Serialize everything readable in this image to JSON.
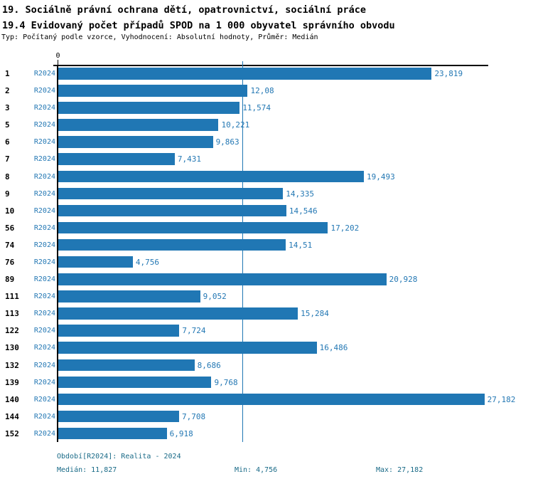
{
  "header": {
    "title_line1": "19. Sociálně právní ochrana dětí, opatrovnictví, sociální práce",
    "title_line2": "19.4 Evidovaný počet případů SPOD na 1 000 obyvatel správního obvodu",
    "subtitle": "Typ: Počítaný podle vzorce, Vyhodnocení: Absolutní hodnoty, Průměr: Medián"
  },
  "colors": {
    "bar": "#2077B4",
    "series_label": "#2478B4",
    "value_label": "#2478B4",
    "median_line": "#2077B4",
    "footer_text": "#196A87",
    "axis": "#000000"
  },
  "chart_data": {
    "type": "bar",
    "orientation": "horizontal",
    "title": "19.4 Evidovaný počet případů SPOD na 1 000 obyvatel správního obvodu",
    "xlabel": "",
    "ylabel": "",
    "xlim": [
      0,
      27.4
    ],
    "axis_zero_tick_label": "0",
    "grid": false,
    "legend_position": "none",
    "categories": [
      "1",
      "2",
      "3",
      "5",
      "6",
      "7",
      "8",
      "9",
      "10",
      "56",
      "74",
      "76",
      "89",
      "111",
      "113",
      "122",
      "130",
      "132",
      "139",
      "140",
      "144",
      "152"
    ],
    "series": [
      {
        "name": "R2024",
        "values": [
          23.819,
          12.08,
          11.574,
          10.221,
          9.863,
          7.431,
          19.493,
          14.335,
          14.546,
          17.202,
          14.51,
          4.756,
          20.928,
          9.052,
          15.284,
          7.724,
          16.486,
          8.686,
          9.768,
          27.182,
          7.708,
          6.918
        ],
        "value_labels": [
          "23,819",
          "12,08",
          "11,574",
          "10,221",
          "9,863",
          "7,431",
          "19,493",
          "14,335",
          "14,546",
          "17,202",
          "14,51",
          "4,756",
          "20,928",
          "9,052",
          "15,284",
          "7,724",
          "16,486",
          "8,686",
          "9,768",
          "27,182",
          "7,708",
          "6,918"
        ]
      }
    ],
    "median_value": 11.827,
    "annotations": {
      "median_line_at": 11.827
    }
  },
  "footer": {
    "period": "Období[R2024]: Realita - 2024",
    "median": "Medián: 11,827",
    "min": "Min: 4,756",
    "max": "Max: 27,182"
  }
}
